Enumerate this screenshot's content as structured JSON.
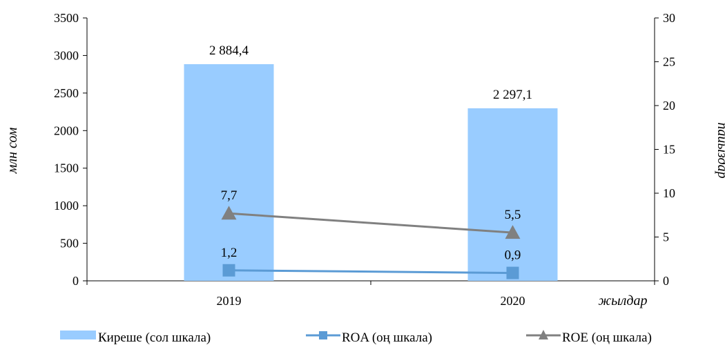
{
  "chart_data": {
    "type": "bar",
    "categories": [
      "2019",
      "2020"
    ],
    "x_title": "жылдар",
    "y_left": {
      "label": "млн сом",
      "range": [
        0,
        3500
      ],
      "ticks": [
        0,
        500,
        1000,
        1500,
        2000,
        2500,
        3000,
        3500
      ]
    },
    "y_right": {
      "label": "пайыздар",
      "range": [
        0,
        30
      ],
      "ticks": [
        0,
        5,
        10,
        15,
        20,
        25,
        30
      ]
    },
    "series": [
      {
        "name": "Киреше (сол шкала)",
        "kind": "bar",
        "axis": "left",
        "values": [
          2884.4,
          2297.1
        ],
        "labels": [
          "2 884,4",
          "2 297,1"
        ],
        "color": "#99ccff"
      },
      {
        "name": "ROA (оң шкала)",
        "kind": "line",
        "marker": "square",
        "axis": "right",
        "values": [
          1.2,
          0.9
        ],
        "labels": [
          "1,2",
          "0,9"
        ],
        "color": "#5b9bd5"
      },
      {
        "name": "ROE (оң шкала)",
        "kind": "line",
        "marker": "triangle",
        "axis": "right",
        "values": [
          7.7,
          5.5
        ],
        "labels": [
          "7,7",
          "5,5"
        ],
        "color": "#808080"
      }
    ],
    "grid": false,
    "legend_position": "bottom"
  }
}
